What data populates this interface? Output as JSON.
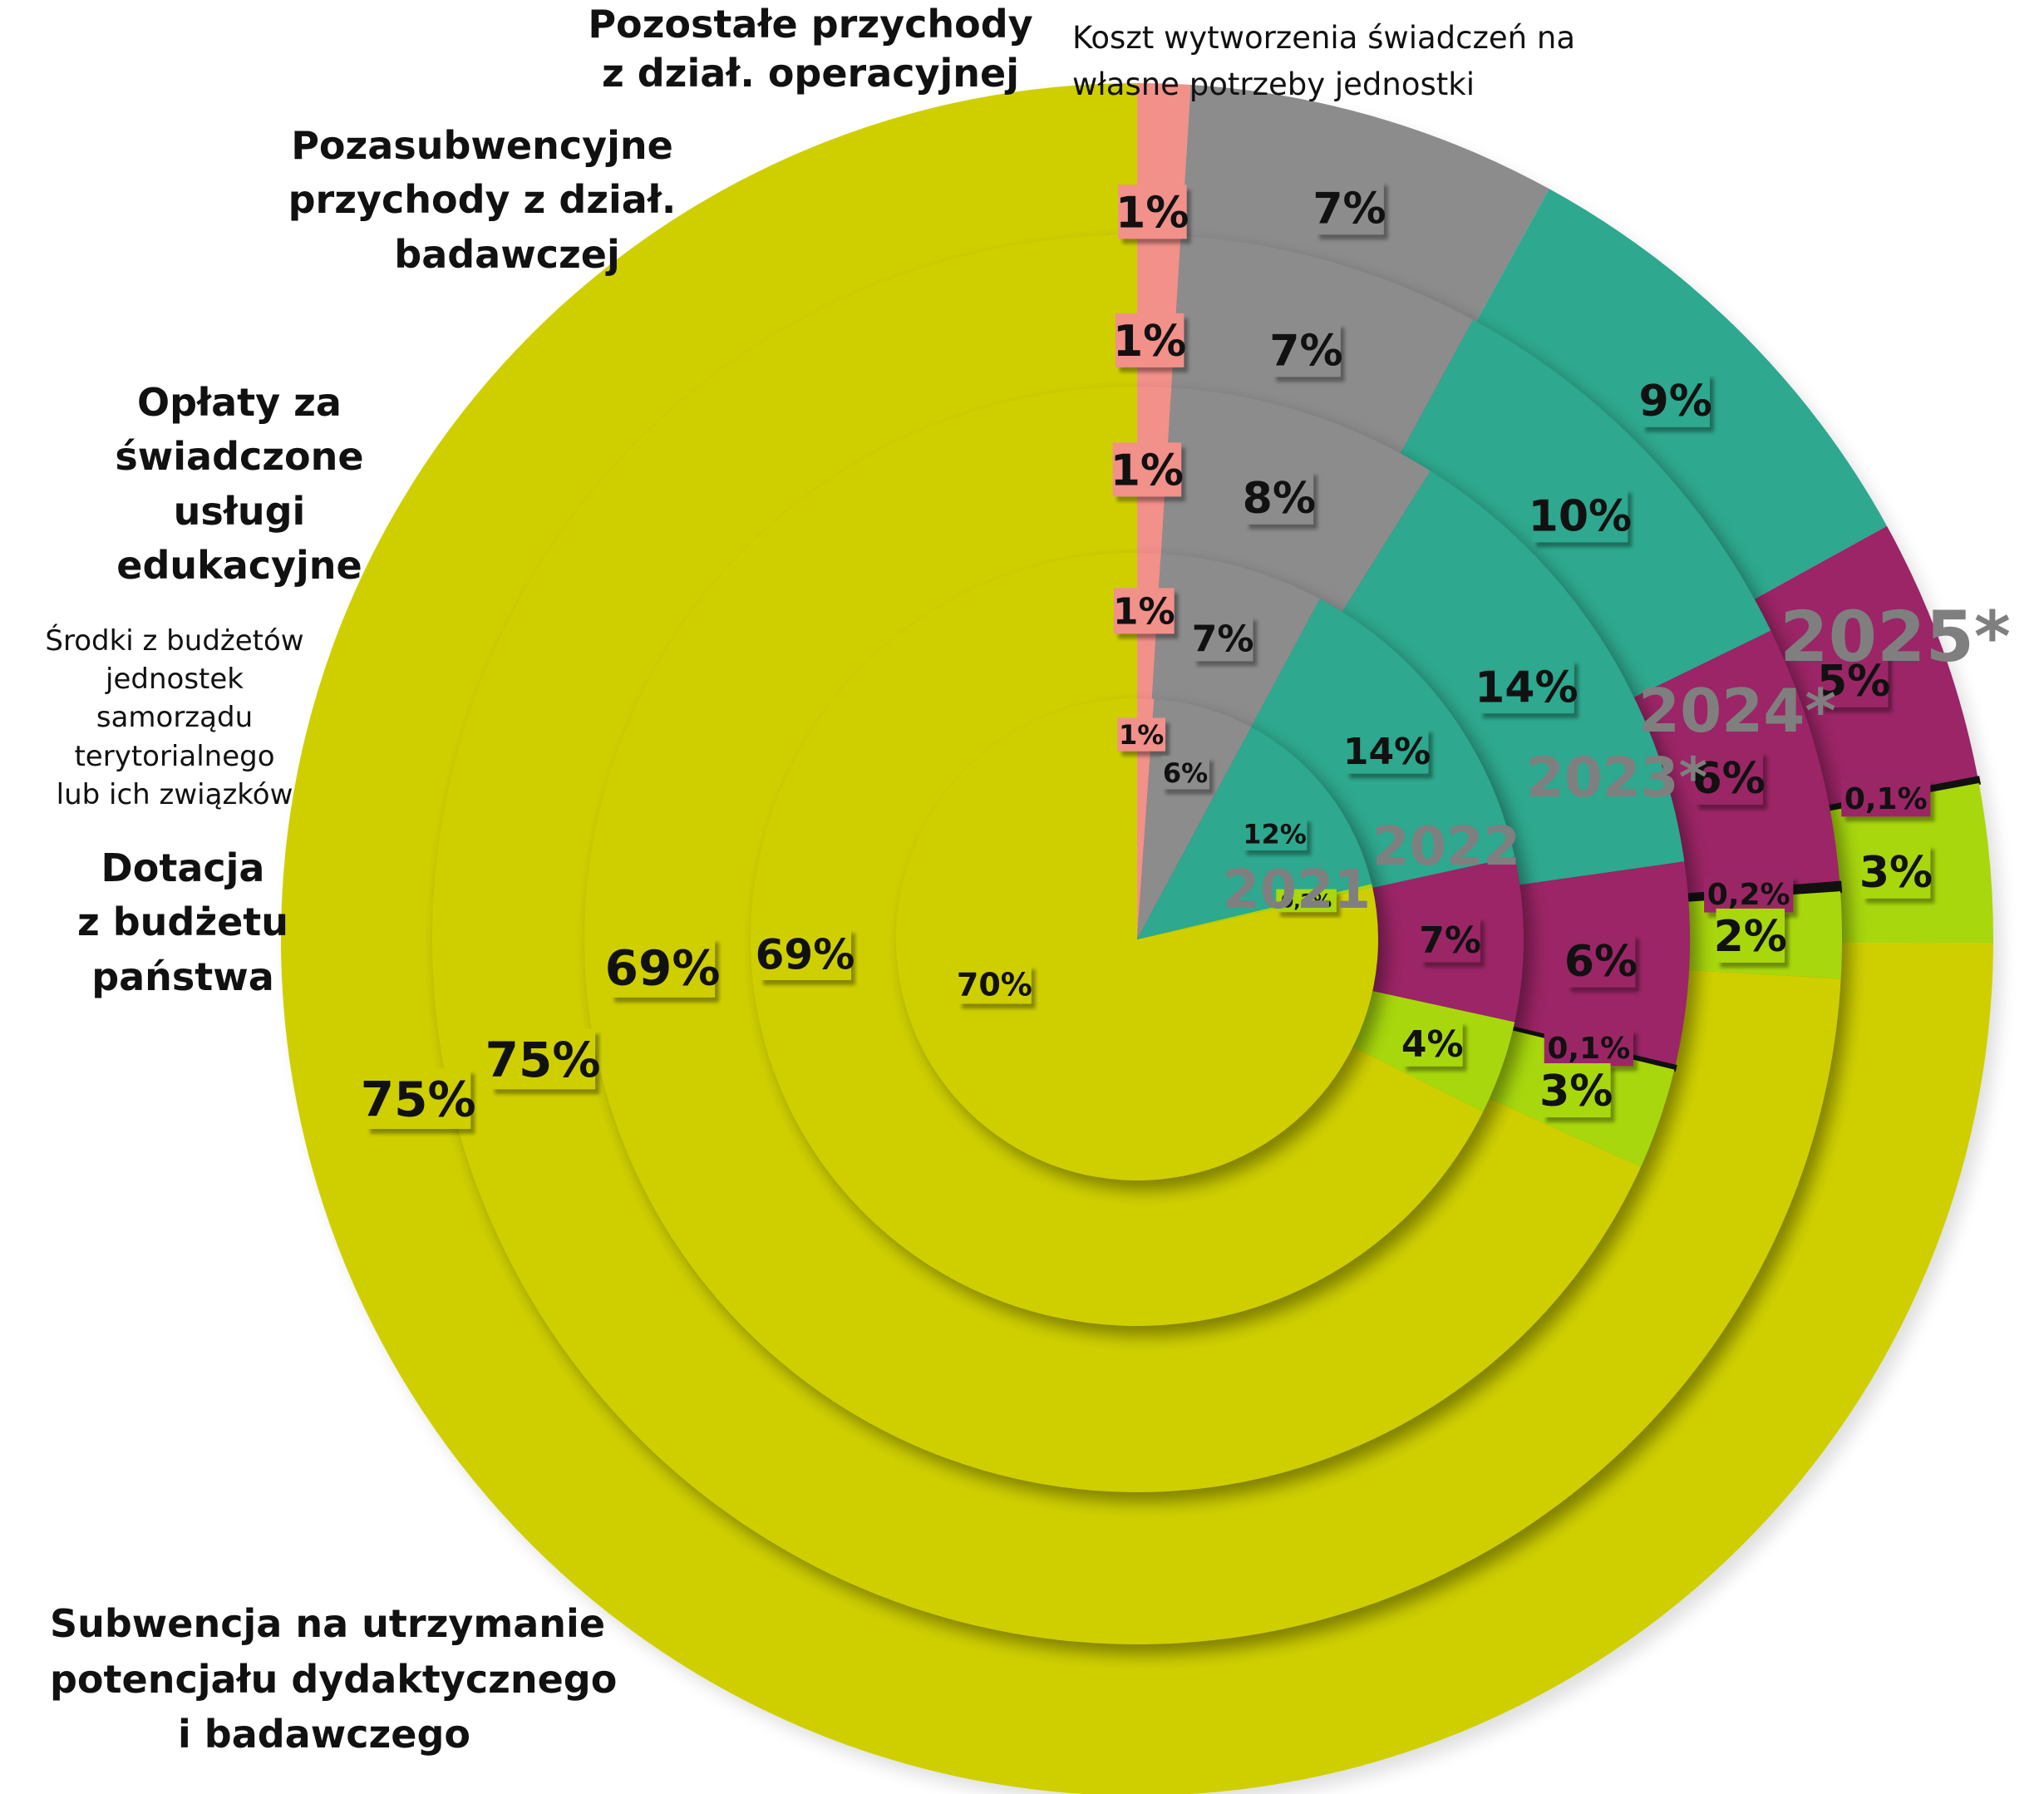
{
  "chart_data": {
    "type": "pie",
    "variant": "nested-donut",
    "rings": [
      "2021",
      "2022",
      "2023*",
      "2024*",
      "2025*"
    ],
    "series": [
      {
        "name": "Subwencja na utrzymanie potencjału dydaktycznego i badawczego",
        "color": "#cfcf00",
        "values": [
          70,
          69,
          69,
          75,
          75
        ],
        "labels": [
          "70%",
          "69%",
          "69%",
          "75%",
          "75%"
        ]
      },
      {
        "name": "Dotacja z budżetu państwa",
        "color": "#a8d70d",
        "values": [
          0.2,
          4,
          3,
          2,
          3
        ],
        "labels": [
          "0,2%",
          "4%",
          "3%",
          "2%",
          "3%"
        ]
      },
      {
        "name": "Środki z budżetów jednostek samorządu terytorialnego lub ich związków",
        "color": "#111111",
        "values": [
          0,
          0,
          0.1,
          0.2,
          0.1
        ],
        "labels": [
          "",
          "",
          "0,1%",
          "0,2%",
          "0,1%"
        ]
      },
      {
        "name": "Opłaty za świadczone usługi edukacyjne",
        "color": "#9b2566",
        "values": [
          0,
          7,
          6,
          6,
          5
        ],
        "labels": [
          "",
          "7%",
          "6%",
          "6%",
          "5%"
        ]
      },
      {
        "name": "Pozasubwencyjne przychody z dział. badawczej",
        "color": "#2ea88e",
        "values": [
          12,
          14,
          14,
          10,
          9
        ],
        "labels": [
          "12%",
          "14%",
          "14%",
          "10%",
          "9%"
        ]
      },
      {
        "name": "Pozostałe przychody z dział. operacyjnej",
        "color": "#8c8c8c",
        "values": [
          6,
          7,
          8,
          7,
          7
        ],
        "labels": [
          "6%",
          "7%",
          "8%",
          "7%",
          "7%"
        ]
      },
      {
        "name": "Koszt wytworzenia świadczeń na własne potrzeby jednostki",
        "color": "#f2908a",
        "values": [
          1,
          1,
          1,
          1,
          1
        ],
        "labels": [
          "1%",
          "1%",
          "1%",
          "1%",
          "1%"
        ]
      }
    ],
    "category_labels": {
      "pozostale": [
        "Pozostałe przychody",
        "z dział. operacyjnej"
      ],
      "koszt": [
        "Koszt wytworzenia świadczeń na",
        "własne potrzeby jednostki"
      ],
      "pozasubwencyjne": [
        "Pozasubwencyjne",
        "przychody z dział.",
        "badawczej"
      ],
      "oplaty": [
        "Opłaty za",
        "świadczone",
        "usługi",
        "edukacyjne"
      ],
      "srodki": [
        "Środki z budżetów",
        "jednostek",
        "samorządu",
        "terytorialnego",
        "lub ich związków"
      ],
      "dotacja": [
        "Dotacja",
        "z budżetu",
        "państwa"
      ],
      "subwencja": [
        "Subwencja na utrzymanie",
        "potencjału dydaktycznego",
        "i badawczego"
      ]
    },
    "year_label_color": "#7f7f7f"
  }
}
